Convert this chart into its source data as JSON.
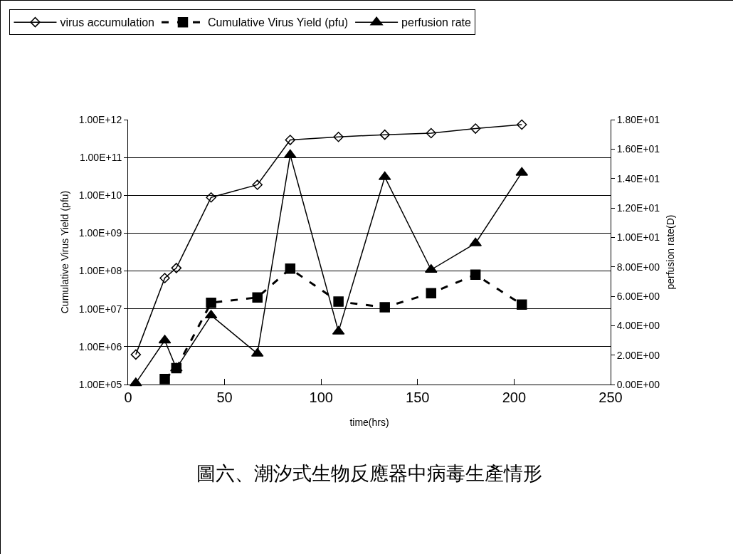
{
  "chart_data": {
    "type": "line",
    "title": "圖六、潮汐式生物反應器中病毒生產情形",
    "xlabel": "time(hrs)",
    "ylabel": "Cumulative Virus Yield (pfu)",
    "y2label": "perfusion rate(D)",
    "log": "y",
    "grid": "y",
    "legend": "top",
    "xlim": [
      0,
      250
    ],
    "xticks": [
      0,
      50,
      100,
      150,
      200,
      250
    ],
    "ylim": [
      100000,
      1000000000000
    ],
    "yticks": [
      {
        "value": 100000,
        "label": "1.00E+05"
      },
      {
        "value": 1000000,
        "label": "1.00E+06"
      },
      {
        "value": 10000000,
        "label": "1.00E+07"
      },
      {
        "value": 100000000,
        "label": "1.00E+08"
      },
      {
        "value": 1000000000,
        "label": "1.00E+09"
      },
      {
        "value": 10000000000,
        "label": "1.00E+10"
      },
      {
        "value": 100000000000,
        "label": "1.00E+11"
      },
      {
        "value": 1000000000000,
        "label": "1.00E+12"
      }
    ],
    "y2lim": [
      0,
      18
    ],
    "y2ticks": [
      {
        "value": 0,
        "label": "0.00E+00"
      },
      {
        "value": 2,
        "label": "2.00E+00"
      },
      {
        "value": 4,
        "label": "4.00E+00"
      },
      {
        "value": 6,
        "label": "6.00E+00"
      },
      {
        "value": 8,
        "label": "8.00E+00"
      },
      {
        "value": 10,
        "label": "1.00E+01"
      },
      {
        "value": 12,
        "label": "1.20E+01"
      },
      {
        "value": 14,
        "label": "1.40E+01"
      },
      {
        "value": 16,
        "label": "1.60E+01"
      },
      {
        "value": 18,
        "label": "1.80E+01"
      }
    ],
    "series": [
      {
        "name": "virus accumulation",
        "color": "#000000",
        "marker": "diamond",
        "line_style": "solid",
        "x": [
          4,
          19,
          25,
          43,
          67,
          84,
          109,
          133,
          157,
          180,
          204
        ],
        "values": [
          620000,
          65000000,
          120000000,
          8800000000,
          19000000000,
          290000000000,
          350000000000,
          400000000000,
          440000000000,
          580000000000,
          740000000000
        ]
      },
      {
        "name": "Cumulative Virus Yield (pfu)",
        "color": "#000000",
        "marker": "square",
        "line_style": "dashed",
        "x": [
          19,
          25,
          43,
          67,
          84,
          109,
          133,
          157,
          180,
          204
        ],
        "values": [
          140000,
          270000,
          14500000,
          20000000,
          115000000,
          15500000,
          11000000,
          26000000,
          80000000,
          13000000
        ]
      },
      {
        "name": "perfusion rate",
        "color": "#000000",
        "marker": "triangle",
        "line_style": "solid",
        "axis": "y2",
        "x": [
          4,
          19,
          25,
          43,
          67,
          84,
          109,
          133,
          157,
          180,
          204
        ],
        "values": [
          0.1,
          3.0,
          1.1,
          4.7,
          2.1,
          15.6,
          3.6,
          14.1,
          7.8,
          9.6,
          14.4
        ]
      }
    ]
  }
}
